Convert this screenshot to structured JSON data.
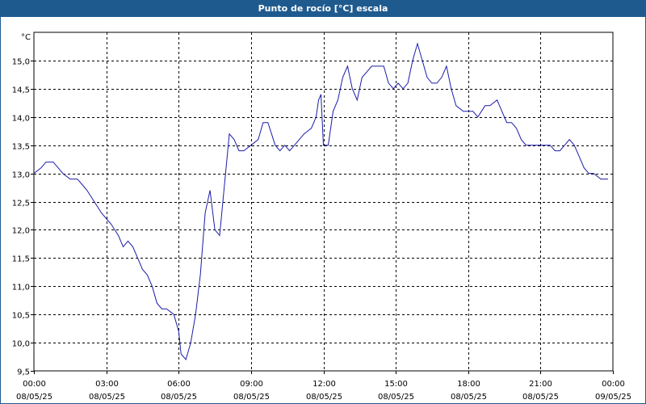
{
  "window": {
    "title": "Punto de rocío [°C] escala"
  },
  "colors": {
    "header": "#1f5a8f",
    "line": "#1c1ca8",
    "grid": "#000000"
  },
  "chart_data": {
    "type": "line",
    "title": "Punto de rocío [°C] escala",
    "ylabel": "°C",
    "xlabel": "",
    "ylim": [
      9.5,
      15.5
    ],
    "xlim": [
      0,
      24
    ],
    "grid": true,
    "y_ticks": [
      "9,5",
      "10,0",
      "10,5",
      "11,0",
      "11,5",
      "12,0",
      "12,5",
      "13,0",
      "13,5",
      "14,0",
      "14,5",
      "15,0"
    ],
    "x_ticks": [
      {
        "time": "00:00",
        "date": "08/05/25"
      },
      {
        "time": "03:00",
        "date": "08/05/25"
      },
      {
        "time": "06:00",
        "date": "08/05/25"
      },
      {
        "time": "09:00",
        "date": "08/05/25"
      },
      {
        "time": "12:00",
        "date": "08/05/25"
      },
      {
        "time": "15:00",
        "date": "08/05/25"
      },
      {
        "time": "18:00",
        "date": "08/05/25"
      },
      {
        "time": "21:00",
        "date": "08/05/25"
      },
      {
        "time": "00:00",
        "date": "09/05/25"
      }
    ],
    "series": [
      {
        "x": [
          0,
          0.3,
          0.5,
          0.8,
          1.0,
          1.2,
          1.5,
          1.8,
          2.0,
          2.2,
          2.5,
          2.8,
          3.0,
          3.2,
          3.5,
          3.7,
          3.9,
          4.1,
          4.3,
          4.5,
          4.7,
          4.9,
          5.1,
          5.3,
          5.5,
          5.8,
          6.0,
          6.1,
          6.3,
          6.5,
          6.7,
          6.9,
          7.1,
          7.3,
          7.5,
          7.7,
          7.9,
          8.1,
          8.3,
          8.5,
          8.7,
          9.0,
          9.3,
          9.5,
          9.7,
          10.0,
          10.2,
          10.4,
          10.6,
          10.8,
          11.0,
          11.2,
          11.5,
          11.7,
          11.8,
          11.9,
          12.0,
          12.2,
          12.4,
          12.6,
          12.8,
          13.0,
          13.2,
          13.4,
          13.6,
          13.8,
          14.0,
          14.2,
          14.5,
          14.7,
          14.9,
          15.1,
          15.3,
          15.5,
          15.7,
          15.9,
          16.1,
          16.3,
          16.5,
          16.7,
          16.9,
          17.1,
          17.3,
          17.5,
          17.8,
          18.0,
          18.2,
          18.4,
          18.7,
          18.9,
          19.2,
          19.4,
          19.6,
          19.8,
          20.0,
          20.2,
          20.4,
          20.6,
          20.8,
          21.0,
          21.2,
          21.4,
          21.6,
          21.8,
          22.0,
          22.2,
          22.4,
          22.6,
          22.8,
          23.0,
          23.2,
          23.5,
          23.8
        ],
        "y": [
          13.0,
          13.1,
          13.2,
          13.2,
          13.1,
          13.0,
          12.9,
          12.9,
          12.8,
          12.7,
          12.5,
          12.3,
          12.2,
          12.1,
          11.9,
          11.7,
          11.8,
          11.7,
          11.5,
          11.3,
          11.2,
          11.0,
          10.7,
          10.6,
          10.6,
          10.5,
          10.2,
          9.8,
          9.7,
          10.0,
          10.5,
          11.2,
          12.3,
          12.7,
          12.0,
          11.9,
          12.8,
          13.7,
          13.6,
          13.4,
          13.4,
          13.5,
          13.6,
          13.9,
          13.9,
          13.5,
          13.4,
          13.5,
          13.4,
          13.5,
          13.6,
          13.7,
          13.8,
          14.0,
          14.3,
          14.4,
          13.5,
          13.5,
          14.1,
          14.3,
          14.7,
          14.9,
          14.5,
          14.3,
          14.7,
          14.8,
          14.9,
          14.9,
          14.9,
          14.6,
          14.5,
          14.6,
          14.5,
          14.6,
          15.0,
          15.3,
          15.0,
          14.7,
          14.6,
          14.6,
          14.7,
          14.9,
          14.5,
          14.2,
          14.1,
          14.1,
          14.1,
          14.0,
          14.2,
          14.2,
          14.3,
          14.1,
          13.9,
          13.9,
          13.8,
          13.6,
          13.5,
          13.5,
          13.5,
          13.5,
          13.5,
          13.5,
          13.4,
          13.4,
          13.5,
          13.6,
          13.5,
          13.3,
          13.1,
          13.0,
          13.0,
          12.9,
          12.9
        ]
      }
    ]
  }
}
